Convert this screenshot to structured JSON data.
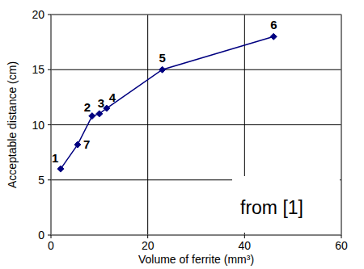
{
  "chart_data": {
    "type": "line",
    "x_label": "Volume of ferrite (mm³)",
    "y_label": "Acceptable distance (cm)",
    "x": [
      2,
      5.5,
      8.5,
      10,
      11.5,
      23,
      46
    ],
    "values": [
      6,
      8.2,
      10.8,
      11,
      11.5,
      15,
      18
    ],
    "point_labels": [
      "1",
      "7",
      "2",
      "3",
      "4",
      "5",
      "6"
    ],
    "color": "#000080",
    "marker": "diamond",
    "xlim": [
      0,
      60
    ],
    "xticks": [
      0,
      20,
      40,
      60
    ],
    "ylim": [
      0,
      20
    ],
    "yticks": [
      0,
      5,
      10,
      15,
      20
    ],
    "grid": true,
    "annotations": [
      {
        "text": "from [1]"
      }
    ]
  }
}
